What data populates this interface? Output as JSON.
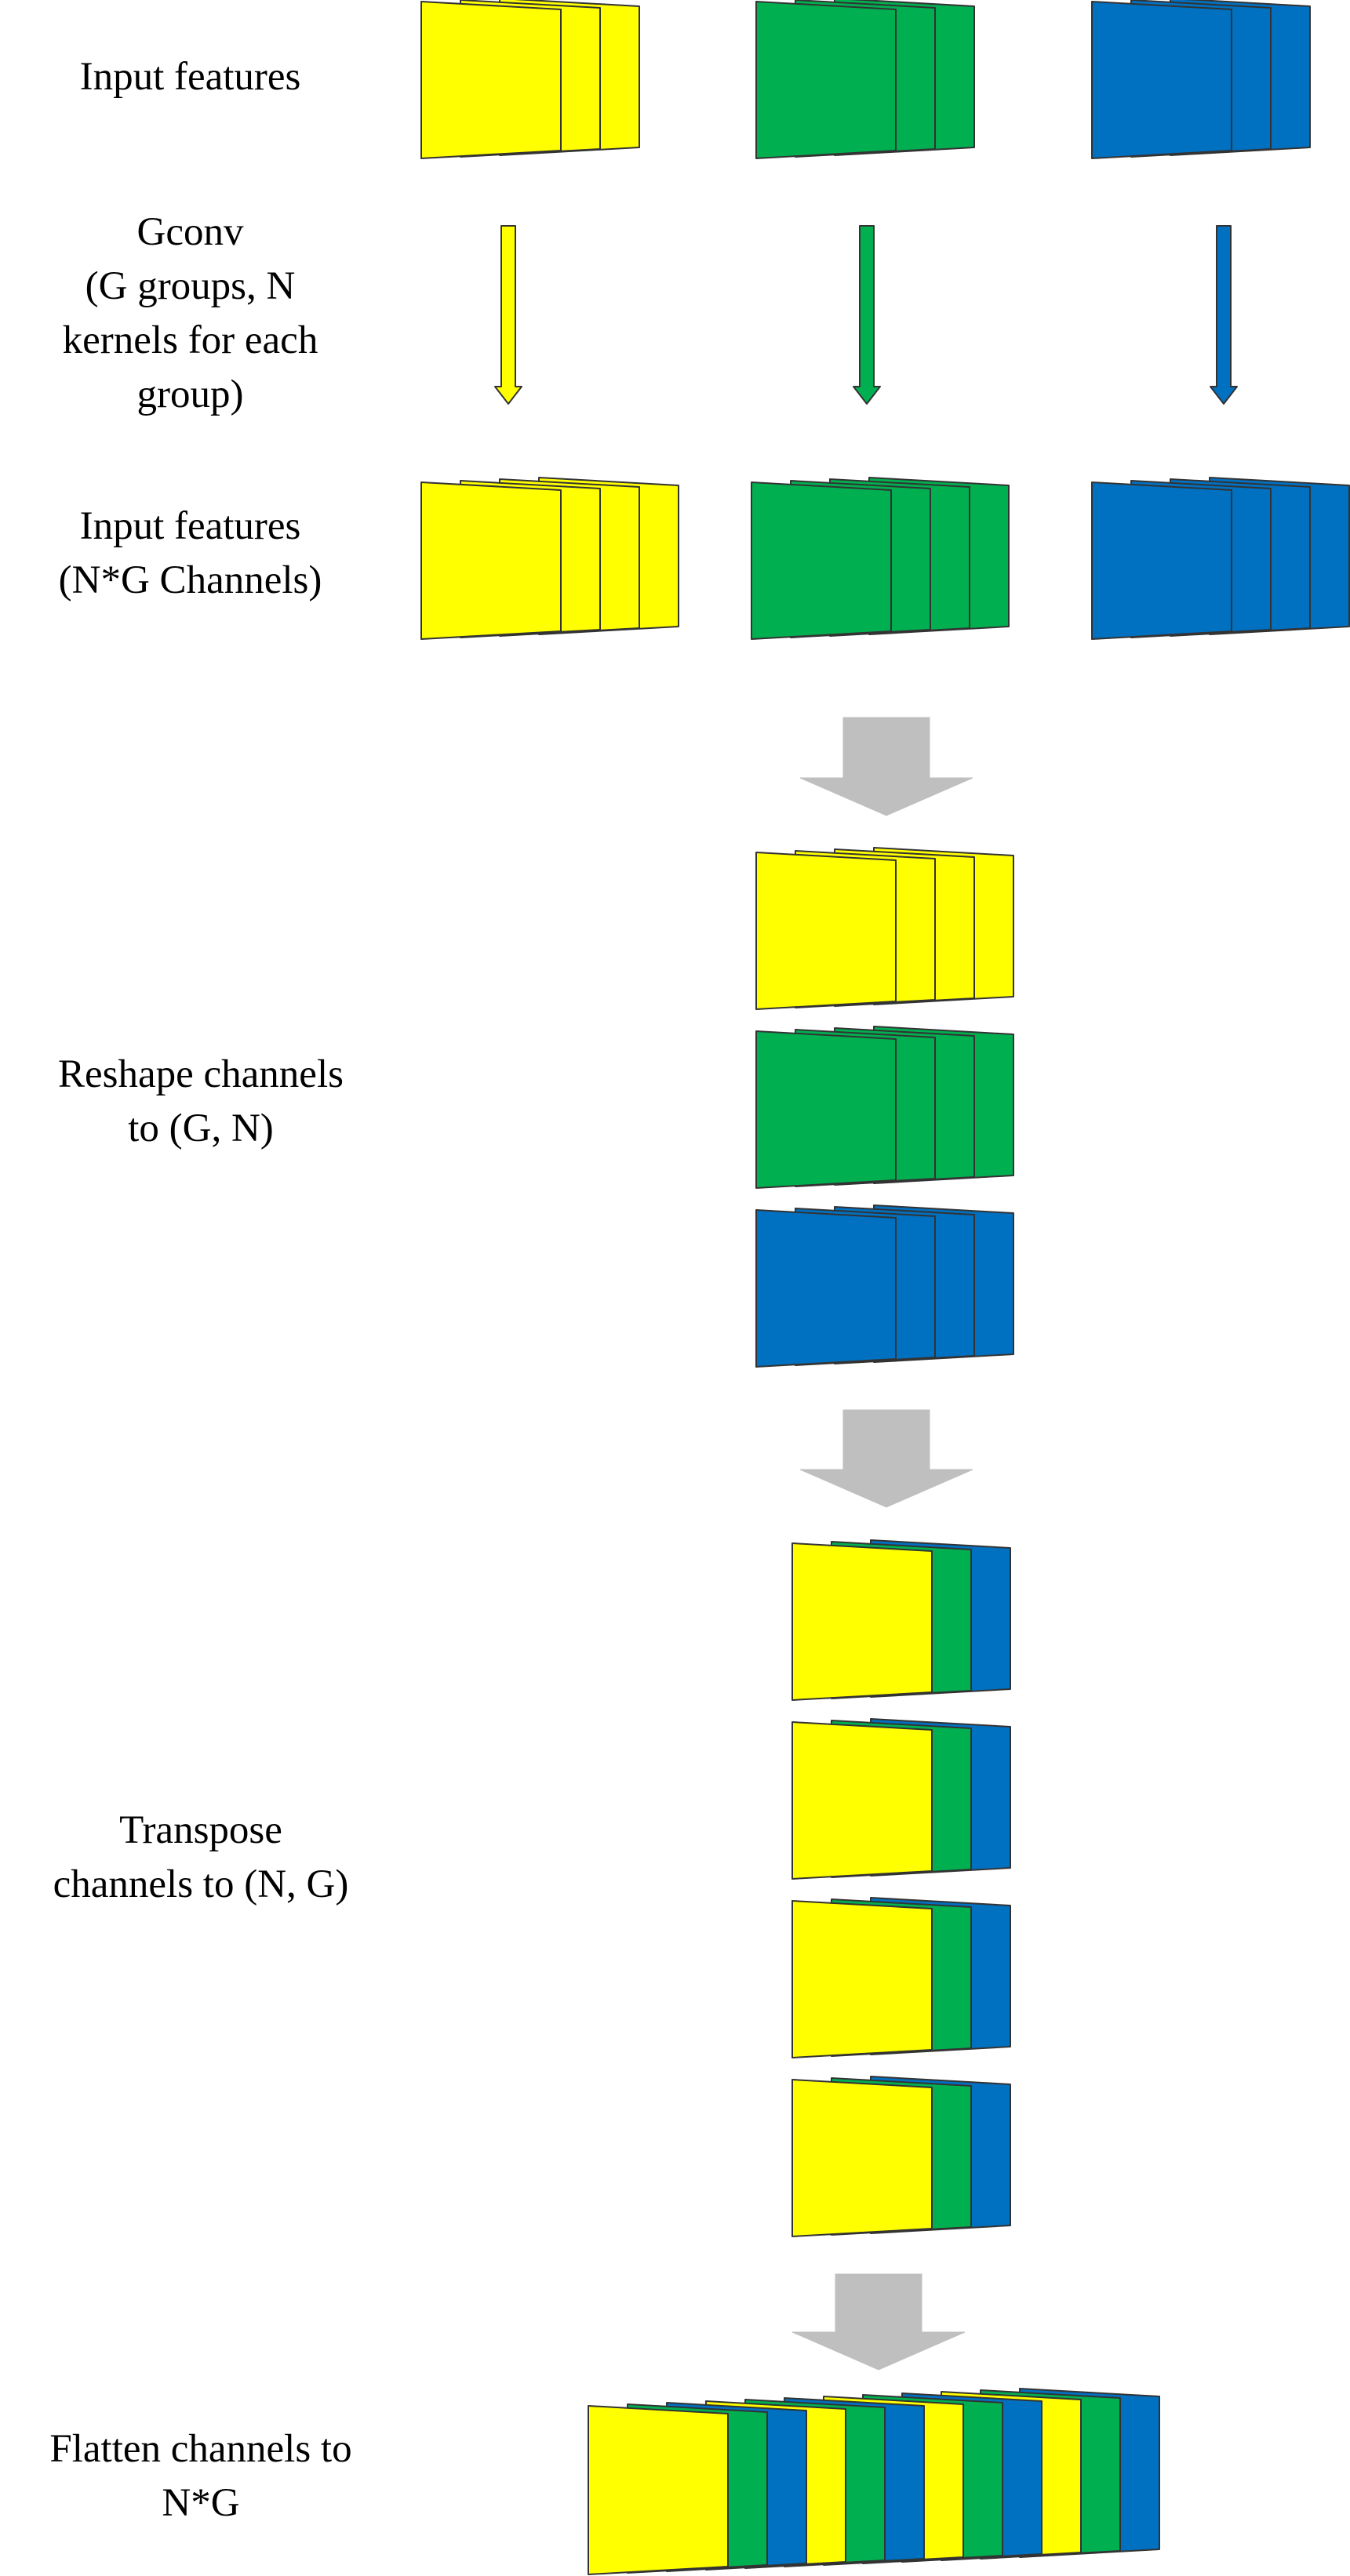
{
  "colors": {
    "yellow": "#FFFF00",
    "green": "#00B050",
    "blue": "#0070C0",
    "arrow_gray": "#BFBFBF",
    "outline": "#333333"
  },
  "stages": {
    "input": {
      "lines": [
        "Input features"
      ]
    },
    "gconv": {
      "lines": [
        "Gconv",
        "(G groups, N",
        "kernels for each",
        "group)"
      ]
    },
    "output": {
      "lines": [
        "Input features",
        "(N*G Channels)"
      ]
    },
    "reshape": {
      "lines": [
        "Reshape channels",
        "to (G, N)"
      ]
    },
    "transpose": {
      "lines": [
        "Transpose",
        "channels to (N, G)"
      ]
    },
    "flatten": {
      "lines": [
        "Flatten channels to",
        "N*G"
      ]
    }
  },
  "diagram": {
    "input_groups": [
      "yellow",
      "green",
      "blue"
    ],
    "gconv_arrows": [
      "yellow",
      "green",
      "blue"
    ],
    "output_groups": [
      "yellow",
      "green",
      "blue"
    ],
    "reshape_rows": [
      "yellow",
      "green",
      "blue"
    ],
    "transpose_rows": [
      [
        "yellow",
        "green",
        "blue"
      ],
      [
        "yellow",
        "green",
        "blue"
      ],
      [
        "yellow",
        "green",
        "blue"
      ],
      [
        "yellow",
        "green",
        "blue"
      ]
    ],
    "flatten_sequence": [
      "yellow",
      "green",
      "blue",
      "yellow",
      "green",
      "blue",
      "yellow",
      "green",
      "blue",
      "yellow",
      "green",
      "blue"
    ]
  }
}
